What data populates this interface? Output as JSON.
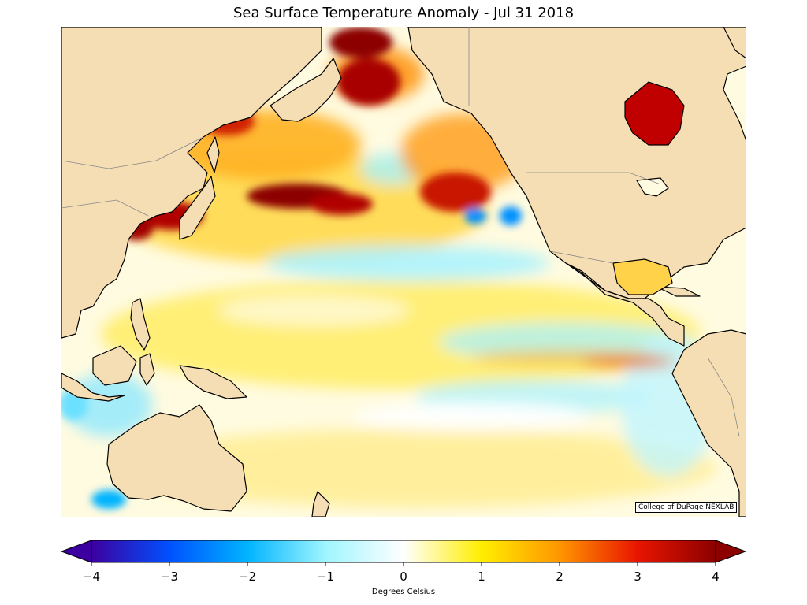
{
  "title": "Sea Surface Temperature Anomaly - Jul 31 2018",
  "credit": "College of DuPage NEXLAB",
  "colorbar": {
    "label": "Degrees Celsius",
    "min": -4,
    "max": 4,
    "ticks": [
      "−4",
      "−3",
      "−2",
      "−1",
      "0",
      "1",
      "2",
      "3",
      "4"
    ],
    "colors": {
      "neg4": "#3c00a0",
      "neg3": "#0050ff",
      "neg2": "#00b4ff",
      "neg1": "#9ff5ff",
      "zero": "#ffffff",
      "pos1": "#ffee00",
      "pos2": "#ff9600",
      "pos3": "#e81500",
      "pos4": "#8c0000"
    }
  },
  "map": {
    "land_color": "#f5deb3",
    "ocean_neutral": "#fffbe0",
    "coast_color": "#000000",
    "border_color": "#888888"
  }
}
